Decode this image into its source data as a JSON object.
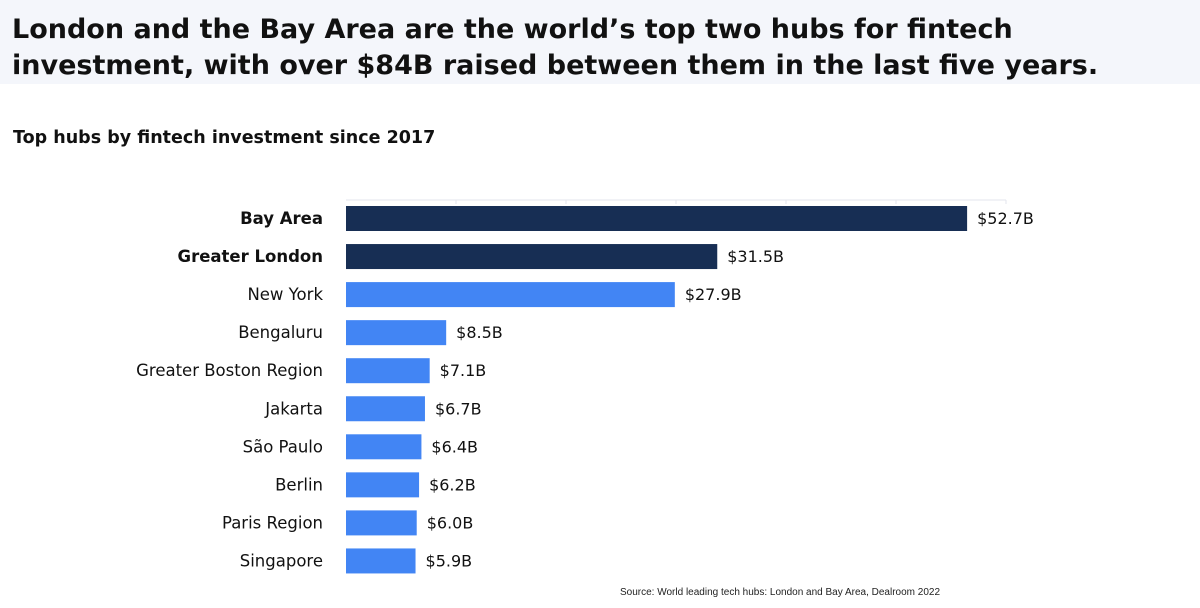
{
  "headline": "London and the Bay Area are the world’s top two hubs for fintech investment, with over $84B raised between them in the last five years.",
  "source": "Source: World leading tech hubs: London and Bay Area, Dealroom 2022",
  "colors": {
    "highlight": "#172e54",
    "default": "#4285f4",
    "grid": "#e3e6ec"
  },
  "chart_data": {
    "type": "bar",
    "orientation": "horizontal",
    "title": "Top hubs by fintech investment since 2017",
    "unit": "$B",
    "xlim": [
      0,
      56
    ],
    "grid": true,
    "categories": [
      "Bay Area",
      "Greater London",
      "New York",
      "Bengaluru",
      "Greater Boston Region",
      "Jakarta",
      "São Paulo",
      "Berlin",
      "Paris Region",
      "Singapore"
    ],
    "values": [
      52.7,
      31.5,
      27.9,
      8.5,
      7.1,
      6.7,
      6.4,
      6.2,
      6.0,
      5.9
    ],
    "value_labels": [
      "$52.7B",
      "$31.5B",
      "$27.9B",
      "$8.5B",
      "$7.1B",
      "$6.7B",
      "$6.4B",
      "$6.2B",
      "$6.0B",
      "$5.9B"
    ],
    "highlighted": [
      "Bay Area",
      "Greater London"
    ]
  }
}
